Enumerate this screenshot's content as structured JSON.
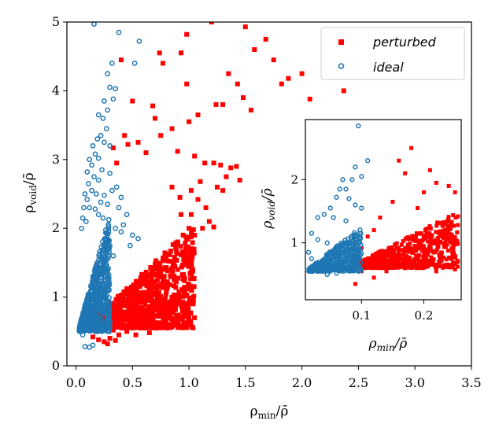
{
  "colors": {
    "perturbed": "#ff0000",
    "ideal": "#1f77b4",
    "axes": "#000000"
  },
  "chart_data": [
    {
      "type": "scatter",
      "title": "",
      "xlabel": "ρ_min/ρ̄",
      "ylabel": "ρ_void/ρ̄",
      "xlabel_base": "ρ",
      "xlabel_sub": "min",
      "xlabel_tail": "/ρ̄",
      "ylabel_base": "ρ",
      "ylabel_sub": "void",
      "ylabel_tail": "/ρ̄",
      "xlim": [
        -0.08,
        3.5
      ],
      "ylim": [
        0,
        5
      ],
      "xticks": [
        0.0,
        0.5,
        1.0,
        1.5,
        2.0,
        2.5,
        3.0,
        3.5
      ],
      "xtick_labels": [
        "0.0",
        "0.5",
        "1.0",
        "1.5",
        "2.0",
        "2.5",
        "3.0",
        "3.5"
      ],
      "yticks": [
        0,
        1,
        2,
        3,
        4,
        5
      ],
      "ytick_labels": [
        "0",
        "1",
        "2",
        "3",
        "4",
        "5"
      ],
      "legend_position": "top-right",
      "legend": [
        "perturbed",
        "ideal"
      ],
      "series": [
        {
          "name": "perturbed",
          "marker": "square",
          "points": [
            [
              0.97,
              5.03
            ],
            [
              1.2,
              5.0
            ],
            [
              1.5,
              4.93
            ],
            [
              0.98,
              4.82
            ],
            [
              0.4,
              4.45
            ],
            [
              0.74,
              4.55
            ],
            [
              0.93,
              4.55
            ],
            [
              0.77,
              4.4
            ],
            [
              1.58,
              4.6
            ],
            [
              1.68,
              4.75
            ],
            [
              1.75,
              4.45
            ],
            [
              1.82,
              4.1
            ],
            [
              1.88,
              4.18
            ],
            [
              2.0,
              4.25
            ],
            [
              1.35,
              4.25
            ],
            [
              1.43,
              4.1
            ],
            [
              1.48,
              3.9
            ],
            [
              2.07,
              3.88
            ],
            [
              2.37,
              4.0
            ],
            [
              1.55,
              3.72
            ],
            [
              1.3,
              3.8
            ],
            [
              1.24,
              3.8
            ],
            [
              0.98,
              4.1
            ],
            [
              0.5,
              3.85
            ],
            [
              0.68,
              3.78
            ],
            [
              0.7,
              3.6
            ],
            [
              0.85,
              3.45
            ],
            [
              1.0,
              3.55
            ],
            [
              1.08,
              3.65
            ],
            [
              0.43,
              3.35
            ],
            [
              0.46,
              3.22
            ],
            [
              0.55,
              3.25
            ],
            [
              0.62,
              3.1
            ],
            [
              0.75,
              3.35
            ],
            [
              0.9,
              3.12
            ],
            [
              1.05,
              3.05
            ],
            [
              0.33,
              3.17
            ],
            [
              1.14,
              2.95
            ],
            [
              1.22,
              2.95
            ],
            [
              1.28,
              2.92
            ],
            [
              1.37,
              2.88
            ],
            [
              1.42,
              2.9
            ],
            [
              1.45,
              2.7
            ],
            [
              1.33,
              2.75
            ],
            [
              0.36,
              2.95
            ],
            [
              1.1,
              2.68
            ],
            [
              1.25,
              2.6
            ],
            [
              1.3,
              2.55
            ],
            [
              1.02,
              2.55
            ],
            [
              1.08,
              2.42
            ],
            [
              0.85,
              2.6
            ],
            [
              0.92,
              2.45
            ],
            [
              1.15,
              2.3
            ],
            [
              1.0,
              2.0
            ],
            [
              1.12,
              2.0
            ],
            [
              1.18,
              2.1
            ],
            [
              1.22,
              2.02
            ],
            [
              1.02,
              2.2
            ],
            [
              0.93,
              2.2
            ],
            [
              0.98,
              1.85
            ],
            [
              1.05,
              1.9
            ],
            [
              0.72,
              1.0
            ],
            [
              0.78,
              0.9
            ],
            [
              0.67,
              1.08
            ],
            [
              0.6,
              0.93
            ],
            [
              0.58,
              0.75
            ],
            [
              0.52,
              0.85
            ],
            [
              0.44,
              0.9
            ],
            [
              0.46,
              0.7
            ],
            [
              0.55,
              0.65
            ],
            [
              0.62,
              0.75
            ],
            [
              0.68,
              0.6
            ],
            [
              0.5,
              0.55
            ],
            [
              0.4,
              0.6
            ],
            [
              0.38,
              0.45
            ],
            [
              0.3,
              0.4
            ],
            [
              0.33,
              0.52
            ],
            [
              0.25,
              0.35
            ],
            [
              0.2,
              0.38
            ],
            [
              0.35,
              0.37
            ],
            [
              0.15,
              0.42
            ],
            [
              0.18,
              0.5
            ],
            [
              0.74,
              0.8
            ],
            [
              0.8,
              1.1
            ],
            [
              0.87,
              1.25
            ],
            [
              0.9,
              1.4
            ],
            [
              0.28,
              0.32
            ],
            [
              0.45,
              0.5
            ],
            [
              0.65,
              0.48
            ],
            [
              0.53,
              0.45
            ]
          ],
          "cloud": {
            "x_min": 0.12,
            "x_max": 1.05,
            "y_base": 0.55,
            "y_spread_per_x": 1.55,
            "count": 900
          }
        },
        {
          "name": "ideal",
          "marker": "hollow-circle",
          "points": [
            [
              0.16,
              4.97
            ],
            [
              0.38,
              4.85
            ],
            [
              0.56,
              4.72
            ],
            [
              0.52,
              4.4
            ],
            [
              0.32,
              4.4
            ],
            [
              0.28,
              4.25
            ],
            [
              0.3,
              4.05
            ],
            [
              0.35,
              4.03
            ],
            [
              0.33,
              3.88
            ],
            [
              0.25,
              3.85
            ],
            [
              0.28,
              3.72
            ],
            [
              0.2,
              3.65
            ],
            [
              0.24,
              3.6
            ],
            [
              0.27,
              3.45
            ],
            [
              0.22,
              3.35
            ],
            [
              0.19,
              3.3
            ],
            [
              0.25,
              3.25
            ],
            [
              0.3,
              3.2
            ],
            [
              0.15,
              3.2
            ],
            [
              0.17,
              3.08
            ],
            [
              0.2,
              3.02
            ],
            [
              0.12,
              3.0
            ],
            [
              0.14,
              2.92
            ],
            [
              0.23,
              2.85
            ],
            [
              0.3,
              2.8
            ],
            [
              0.1,
              2.82
            ],
            [
              0.16,
              2.75
            ],
            [
              0.2,
              2.7
            ],
            [
              0.11,
              2.65
            ],
            [
              0.14,
              2.55
            ],
            [
              0.18,
              2.5
            ],
            [
              0.08,
              2.5
            ],
            [
              0.1,
              2.42
            ],
            [
              0.25,
              2.48
            ],
            [
              0.22,
              2.38
            ],
            [
              0.28,
              2.35
            ],
            [
              0.07,
              2.3
            ],
            [
              0.12,
              2.3
            ],
            [
              0.17,
              2.28
            ],
            [
              0.2,
              2.2
            ],
            [
              0.24,
              2.15
            ],
            [
              0.32,
              2.55
            ],
            [
              0.36,
              2.6
            ],
            [
              0.4,
              2.45
            ],
            [
              0.38,
              2.3
            ],
            [
              0.45,
              2.2
            ],
            [
              0.42,
              2.05
            ],
            [
              0.5,
              1.9
            ],
            [
              0.55,
              1.85
            ],
            [
              0.48,
              1.75
            ],
            [
              0.4,
              1.95
            ],
            [
              0.35,
              2.0
            ],
            [
              0.06,
              2.15
            ],
            [
              0.09,
              2.1
            ],
            [
              0.05,
              2.0
            ],
            [
              0.08,
              0.28
            ],
            [
              0.12,
              0.27
            ],
            [
              0.06,
              0.45
            ],
            [
              0.04,
              0.6
            ],
            [
              0.15,
              0.3
            ],
            [
              0.28,
              1.35
            ],
            [
              0.33,
              1.6
            ],
            [
              0.3,
              1.75
            ]
          ],
          "cloud": {
            "x_min": 0.03,
            "x_max": 0.3,
            "y_base": 0.5,
            "y_spread_per_x": 6.0,
            "count": 700
          }
        }
      ]
    },
    {
      "type": "scatter",
      "title": "",
      "xlabel": "ρ_min/ρ̄",
      "ylabel": "ρ_void/ρ̄",
      "xlabel_base": "ρ",
      "xlabel_sub": "min",
      "xlabel_tail": "/ρ̄",
      "ylabel_base": "ρ",
      "ylabel_sub": "void",
      "ylabel_tail": "/ρ̄",
      "xlim": [
        0.01,
        0.26
      ],
      "ylim": [
        0.1,
        2.95
      ],
      "xticks": [
        0.1,
        0.2
      ],
      "xtick_labels": [
        "0.1",
        "0.2"
      ],
      "yticks": [
        1,
        2
      ],
      "ytick_labels": [
        "1",
        "2"
      ],
      "legend_position": "none",
      "legend": [],
      "series": [
        {
          "name": "perturbed",
          "marker": "square",
          "points": [
            [
              0.18,
              2.5
            ],
            [
              0.16,
              2.3
            ],
            [
              0.17,
              2.1
            ],
            [
              0.21,
              2.15
            ],
            [
              0.22,
              1.95
            ],
            [
              0.24,
              1.9
            ],
            [
              0.25,
              1.8
            ],
            [
              0.2,
              1.8
            ],
            [
              0.15,
              1.65
            ],
            [
              0.19,
              1.55
            ],
            [
              0.13,
              1.4
            ],
            [
              0.12,
              1.2
            ],
            [
              0.11,
              1.1
            ],
            [
              0.1,
              0.92
            ],
            [
              0.09,
              0.72
            ],
            [
              0.1,
              0.55
            ],
            [
              0.08,
              0.6
            ],
            [
              0.09,
              0.35
            ],
            [
              0.12,
              0.45
            ],
            [
              0.14,
              0.55
            ],
            [
              0.17,
              0.6
            ],
            [
              0.2,
              0.65
            ],
            [
              0.22,
              0.55
            ],
            [
              0.25,
              0.58
            ]
          ],
          "cloud": {
            "x_min": 0.085,
            "x_max": 0.255,
            "y_base": 0.6,
            "y_spread_per_x": 5.0,
            "count": 650
          }
        },
        {
          "name": "ideal",
          "marker": "hollow-circle",
          "points": [
            [
              0.095,
              2.85
            ],
            [
              0.11,
              2.3
            ],
            [
              0.09,
              2.2
            ],
            [
              0.1,
              2.05
            ],
            [
              0.085,
              2.0
            ],
            [
              0.07,
              2.0
            ],
            [
              0.075,
              1.85
            ],
            [
              0.065,
              1.85
            ],
            [
              0.08,
              1.7
            ],
            [
              0.06,
              1.72
            ],
            [
              0.09,
              1.6
            ],
            [
              0.1,
              1.55
            ],
            [
              0.05,
              1.55
            ],
            [
              0.04,
              1.45
            ],
            [
              0.03,
              1.4
            ],
            [
              0.055,
              1.4
            ],
            [
              0.075,
              1.35
            ],
            [
              0.02,
              1.15
            ],
            [
              0.03,
              1.05
            ],
            [
              0.045,
              1.0
            ],
            [
              0.015,
              0.85
            ],
            [
              0.02,
              0.75
            ],
            [
              0.025,
              0.6
            ],
            [
              0.03,
              0.55
            ],
            [
              0.045,
              0.5
            ],
            [
              0.06,
              0.52
            ],
            [
              0.07,
              0.6
            ]
          ],
          "cloud": {
            "x_min": 0.015,
            "x_max": 0.1,
            "y_base": 0.55,
            "y_spread_per_x": 8.0,
            "count": 450
          }
        }
      ]
    }
  ]
}
